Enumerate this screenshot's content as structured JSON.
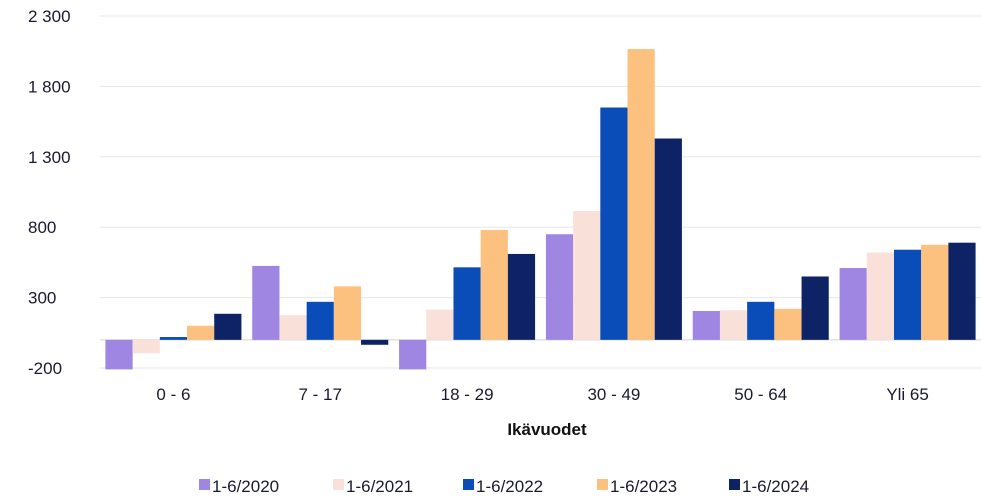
{
  "chart_data": {
    "type": "bar",
    "title": "",
    "xlabel": "Ikävuodet",
    "ylabel": "",
    "ylim": [
      -200,
      2300
    ],
    "yticks": [
      -200,
      300,
      800,
      1300,
      1800,
      2300
    ],
    "ytick_labels": [
      "-200",
      "300",
      "800",
      "1 300",
      "1 800",
      "2 300"
    ],
    "categories": [
      "0 - 6",
      "7 - 17",
      "18 - 29",
      "30 - 49",
      "50 - 64",
      "Yli 65"
    ],
    "series": [
      {
        "name": "1-6/2020",
        "color": "#9e86e2",
        "values": [
          -210,
          525,
          -210,
          750,
          205,
          510
        ]
      },
      {
        "name": "1-6/2021",
        "color": "#f9e1da",
        "values": [
          -95,
          175,
          215,
          915,
          210,
          620
        ]
      },
      {
        "name": "1-6/2022",
        "color": "#0a4db8",
        "values": [
          20,
          270,
          515,
          1650,
          270,
          640
        ]
      },
      {
        "name": "1-6/2023",
        "color": "#fcc17e",
        "values": [
          100,
          380,
          780,
          2065,
          220,
          675
        ]
      },
      {
        "name": "1-6/2024",
        "color": "#0d2366",
        "values": [
          185,
          -35,
          610,
          1430,
          450,
          690
        ]
      }
    ],
    "grid": "horizontal",
    "legend_position": "bottom"
  }
}
